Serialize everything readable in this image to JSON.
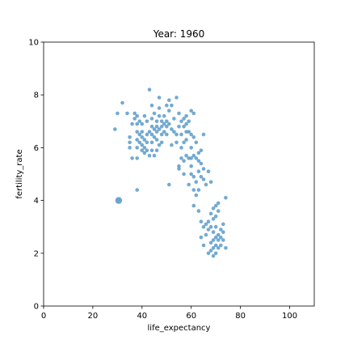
{
  "chart_data": {
    "type": "scatter",
    "title": "Year: 1960",
    "xlabel": "life_expectancy",
    "ylabel": "fertility_rate",
    "xlim": [
      0,
      110
    ],
    "ylim": [
      0,
      10
    ],
    "xticks": [
      0,
      20,
      40,
      60,
      80,
      100
    ],
    "yticks": [
      0,
      2,
      4,
      6,
      8,
      10
    ],
    "grid": false,
    "legend": "none",
    "marker_color": "#5b9bc9",
    "highlight": {
      "x": 30.5,
      "y": 4.0
    },
    "points": [
      [
        32,
        7.7
      ],
      [
        30,
        7.3
      ],
      [
        34,
        7.3
      ],
      [
        29,
        6.7
      ],
      [
        35,
        6.4
      ],
      [
        35,
        6.2
      ],
      [
        35,
        6.0
      ],
      [
        36,
        5.6
      ],
      [
        36,
        6.9
      ],
      [
        37,
        7.3
      ],
      [
        37,
        7.1
      ],
      [
        38,
        7.2
      ],
      [
        38,
        6.9
      ],
      [
        38,
        6.6
      ],
      [
        38,
        6.3
      ],
      [
        38,
        6.0
      ],
      [
        38,
        5.6
      ],
      [
        38,
        4.4
      ],
      [
        39,
        7.0
      ],
      [
        39,
        6.5
      ],
      [
        39,
        6.2
      ],
      [
        40,
        6.9
      ],
      [
        40,
        6.6
      ],
      [
        40,
        6.4
      ],
      [
        40,
        6.1
      ],
      [
        40,
        5.9
      ],
      [
        41,
        5.8
      ],
      [
        41,
        6.0
      ],
      [
        41,
        6.3
      ],
      [
        41,
        7.2
      ],
      [
        42,
        6.2
      ],
      [
        42,
        6.5
      ],
      [
        42,
        7.0
      ],
      [
        42,
        5.9
      ],
      [
        43,
        8.2
      ],
      [
        43,
        6.6
      ],
      [
        43,
        5.7
      ],
      [
        44,
        7.6
      ],
      [
        44,
        7.1
      ],
      [
        44,
        6.8
      ],
      [
        44,
        6.5
      ],
      [
        44,
        6.2
      ],
      [
        44,
        5.9
      ],
      [
        45,
        7.3
      ],
      [
        45,
        6.7
      ],
      [
        45,
        6.4
      ],
      [
        45,
        5.7
      ],
      [
        46,
        7.0
      ],
      [
        46,
        6.8
      ],
      [
        46,
        6.6
      ],
      [
        46,
        6.3
      ],
      [
        46,
        5.9
      ],
      [
        47,
        7.9
      ],
      [
        47,
        7.5
      ],
      [
        47,
        7.2
      ],
      [
        47,
        6.7
      ],
      [
        47,
        6.1
      ],
      [
        48,
        7.0
      ],
      [
        48,
        6.8
      ],
      [
        48,
        6.5
      ],
      [
        48,
        6.2
      ],
      [
        49,
        7.2
      ],
      [
        49,
        6.9
      ],
      [
        49,
        6.6
      ],
      [
        50,
        7.6
      ],
      [
        50,
        7.0
      ],
      [
        50,
        6.8
      ],
      [
        50,
        6.5
      ],
      [
        51,
        7.8
      ],
      [
        51,
        7.4
      ],
      [
        51,
        6.9
      ],
      [
        51,
        4.6
      ],
      [
        52,
        7.6
      ],
      [
        52,
        6.7
      ],
      [
        52,
        6.1
      ],
      [
        53,
        7.1
      ],
      [
        53,
        6.6
      ],
      [
        54,
        7.9
      ],
      [
        54,
        6.5
      ],
      [
        54,
        6.2
      ],
      [
        55,
        7.3
      ],
      [
        55,
        6.8
      ],
      [
        55,
        5.3
      ],
      [
        55,
        5.2
      ],
      [
        56,
        7.0
      ],
      [
        56,
        6.5
      ],
      [
        56,
        6.0
      ],
      [
        56,
        5.6
      ],
      [
        57,
        7.1
      ],
      [
        57,
        6.8
      ],
      [
        57,
        6.2
      ],
      [
        57,
        5.5
      ],
      [
        57,
        5.0
      ],
      [
        58,
        7.2
      ],
      [
        58,
        6.9
      ],
      [
        58,
        6.6
      ],
      [
        58,
        6.3
      ],
      [
        58,
        5.7
      ],
      [
        59,
        7.0
      ],
      [
        59,
        6.6
      ],
      [
        59,
        5.6
      ],
      [
        59,
        4.6
      ],
      [
        60,
        7.4
      ],
      [
        60,
        6.5
      ],
      [
        60,
        6.0
      ],
      [
        60,
        5.6
      ],
      [
        60,
        5.3
      ],
      [
        60,
        5.0
      ],
      [
        61,
        7.3
      ],
      [
        61,
        6.4
      ],
      [
        61,
        5.7
      ],
      [
        61,
        4.9
      ],
      [
        61,
        4.4
      ],
      [
        61,
        3.8
      ],
      [
        62,
        6.2
      ],
      [
        62,
        5.6
      ],
      [
        62,
        4.7
      ],
      [
        62,
        4.2
      ],
      [
        63,
        5.8
      ],
      [
        63,
        5.5
      ],
      [
        63,
        5.1
      ],
      [
        63,
        4.4
      ],
      [
        63,
        3.6
      ],
      [
        64,
        5.9
      ],
      [
        64,
        5.4
      ],
      [
        64,
        4.9
      ],
      [
        64,
        3.2
      ],
      [
        64,
        2.6
      ],
      [
        65,
        6.5
      ],
      [
        65,
        5.2
      ],
      [
        65,
        4.8
      ],
      [
        65,
        3.0
      ],
      [
        65,
        2.3
      ],
      [
        66,
        4.6
      ],
      [
        66,
        3.1
      ],
      [
        67,
        5.1
      ],
      [
        67,
        2.9
      ],
      [
        67,
        2.0
      ],
      [
        68,
        4.7
      ],
      [
        68,
        3.5
      ],
      [
        68,
        3.0
      ],
      [
        68,
        2.4
      ],
      [
        68,
        2.1
      ],
      [
        69,
        3.7
      ],
      [
        69,
        3.3
      ],
      [
        69,
        2.8
      ],
      [
        69,
        2.5
      ],
      [
        69,
        2.2
      ],
      [
        69,
        1.9
      ],
      [
        70,
        3.8
      ],
      [
        70,
        3.4
      ],
      [
        70,
        3.0
      ],
      [
        70,
        2.6
      ],
      [
        70,
        2.3
      ],
      [
        70,
        2.0
      ],
      [
        71,
        3.9
      ],
      [
        71,
        3.6
      ],
      [
        71,
        2.7
      ],
      [
        71,
        2.5
      ],
      [
        71,
        2.2
      ],
      [
        72,
        2.9
      ],
      [
        72,
        2.6
      ],
      [
        72,
        2.3
      ],
      [
        73,
        3.1
      ],
      [
        73,
        2.8
      ],
      [
        73,
        2.5
      ],
      [
        74,
        4.1
      ],
      [
        74,
        2.2
      ],
      [
        67,
        3.2
      ],
      [
        66,
        2.7
      ]
    ]
  }
}
